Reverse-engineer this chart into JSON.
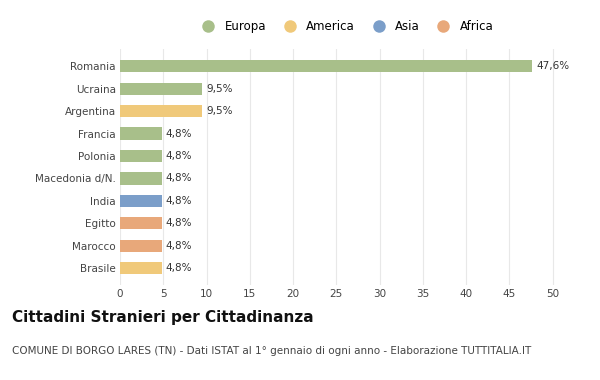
{
  "countries": [
    "Romania",
    "Ucraina",
    "Argentina",
    "Francia",
    "Polonia",
    "Macedonia d/N.",
    "India",
    "Egitto",
    "Marocco",
    "Brasile"
  ],
  "values": [
    47.6,
    9.5,
    9.5,
    4.8,
    4.8,
    4.8,
    4.8,
    4.8,
    4.8,
    4.8
  ],
  "labels": [
    "47,6%",
    "9,5%",
    "9,5%",
    "4,8%",
    "4,8%",
    "4,8%",
    "4,8%",
    "4,8%",
    "4,8%",
    "4,8%"
  ],
  "colors": [
    "#a8bf8a",
    "#a8bf8a",
    "#f0c97a",
    "#a8bf8a",
    "#a8bf8a",
    "#a8bf8a",
    "#7b9ec9",
    "#e8a87a",
    "#e8a87a",
    "#f0c97a"
  ],
  "legend": [
    {
      "label": "Europa",
      "color": "#a8bf8a"
    },
    {
      "label": "America",
      "color": "#f0c97a"
    },
    {
      "label": "Asia",
      "color": "#7b9ec9"
    },
    {
      "label": "Africa",
      "color": "#e8a87a"
    }
  ],
  "xlim": [
    0,
    52
  ],
  "xticks": [
    0,
    5,
    10,
    15,
    20,
    25,
    30,
    35,
    40,
    45,
    50
  ],
  "title": "Cittadini Stranieri per Cittadinanza",
  "subtitle": "COMUNE DI BORGO LARES (TN) - Dati ISTAT al 1° gennaio di ogni anno - Elaborazione TUTTITALIA.IT",
  "bg_color": "#ffffff",
  "grid_color": "#e8e8e8",
  "bar_height": 0.55,
  "title_fontsize": 11,
  "subtitle_fontsize": 7.5,
  "label_fontsize": 7.5,
  "tick_fontsize": 7.5,
  "legend_fontsize": 8.5
}
